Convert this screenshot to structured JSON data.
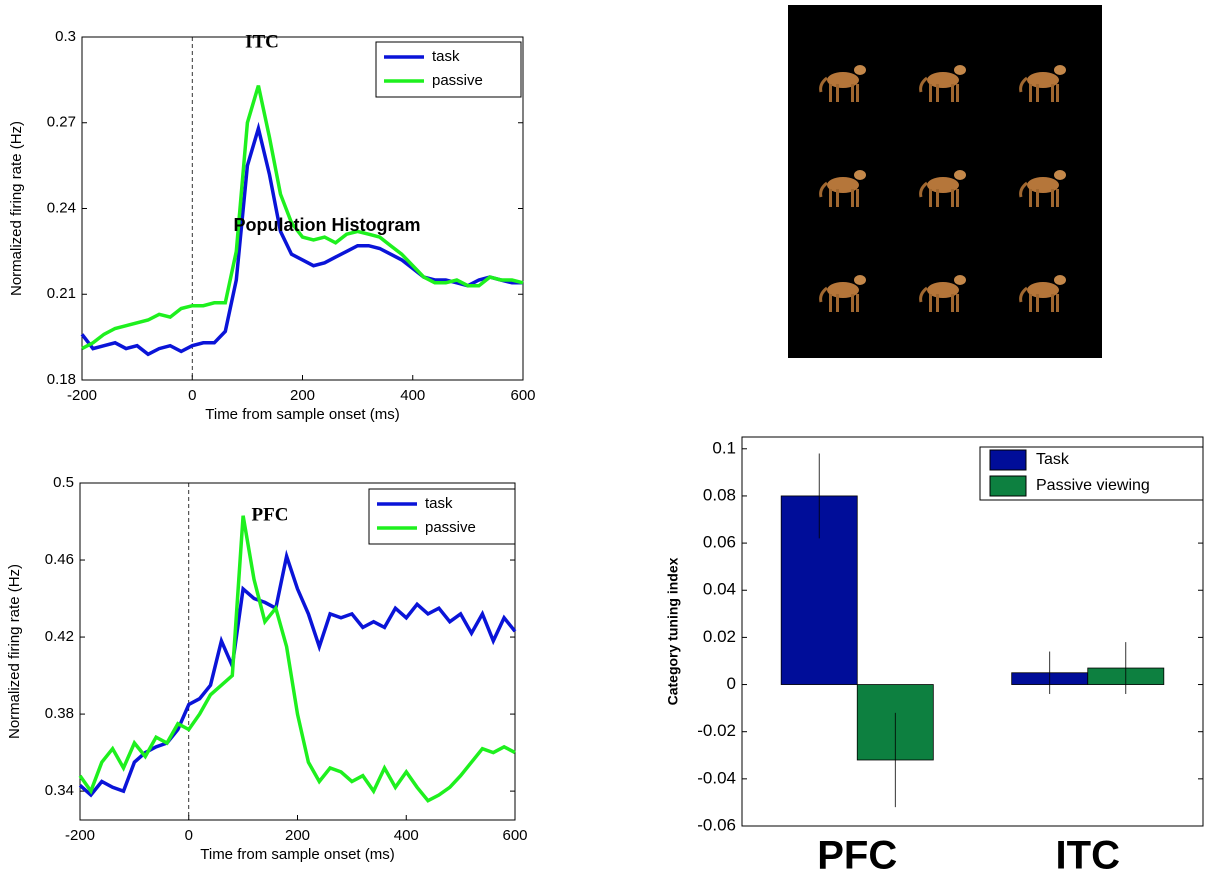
{
  "chart_data": [
    {
      "type": "line",
      "title": "ITC",
      "annotation": "Population Histogram",
      "xlabel": "Time from sample onset  (ms)",
      "ylabel": "Normalized firing rate  (Hz)",
      "xlim": [
        -200,
        600
      ],
      "xticks": [
        -200,
        0,
        200,
        400,
        600
      ],
      "ylim": [
        0.18,
        0.3
      ],
      "yticks": [
        0.18,
        0.21,
        0.24,
        0.27,
        0.3
      ],
      "vline": 0,
      "legend": "upper right",
      "x": [
        -200,
        -180,
        -160,
        -140,
        -120,
        -100,
        -80,
        -60,
        -40,
        -20,
        0,
        20,
        40,
        60,
        80,
        100,
        120,
        140,
        160,
        180,
        200,
        220,
        240,
        260,
        280,
        300,
        320,
        340,
        360,
        380,
        400,
        420,
        440,
        460,
        480,
        500,
        520,
        540,
        560,
        580,
        600
      ],
      "series": [
        {
          "name": "task",
          "color": "#0a14d8",
          "values": [
            0.196,
            0.191,
            0.192,
            0.193,
            0.191,
            0.192,
            0.189,
            0.191,
            0.192,
            0.19,
            0.192,
            0.193,
            0.193,
            0.197,
            0.215,
            0.255,
            0.268,
            0.252,
            0.232,
            0.224,
            0.222,
            0.22,
            0.221,
            0.223,
            0.225,
            0.227,
            0.227,
            0.226,
            0.224,
            0.222,
            0.219,
            0.216,
            0.215,
            0.215,
            0.214,
            0.213,
            0.215,
            0.216,
            0.215,
            0.214,
            0.214
          ]
        },
        {
          "name": "passive",
          "color": "#1ef01e",
          "values": [
            0.191,
            0.193,
            0.196,
            0.198,
            0.199,
            0.2,
            0.201,
            0.203,
            0.202,
            0.205,
            0.206,
            0.206,
            0.207,
            0.207,
            0.225,
            0.27,
            0.283,
            0.265,
            0.245,
            0.235,
            0.23,
            0.229,
            0.23,
            0.228,
            0.231,
            0.232,
            0.231,
            0.23,
            0.227,
            0.224,
            0.22,
            0.216,
            0.214,
            0.214,
            0.215,
            0.213,
            0.213,
            0.216,
            0.215,
            0.215,
            0.214
          ]
        }
      ]
    },
    {
      "type": "line",
      "title": "PFC",
      "xlabel": "Time from sample onset  (ms)",
      "ylabel": "Normalized firing rate  (Hz)",
      "xlim": [
        -200,
        600
      ],
      "xticks": [
        -200,
        0,
        200,
        400,
        600
      ],
      "ylim": [
        0.325,
        0.5
      ],
      "yticks": [
        0.34,
        0.38,
        0.42,
        0.46,
        0.5
      ],
      "vline": 0,
      "legend": "upper right",
      "x": [
        -200,
        -180,
        -160,
        -140,
        -120,
        -100,
        -80,
        -60,
        -40,
        -20,
        0,
        20,
        40,
        60,
        80,
        100,
        120,
        140,
        160,
        180,
        200,
        220,
        240,
        260,
        280,
        300,
        320,
        340,
        360,
        380,
        400,
        420,
        440,
        460,
        480,
        500,
        520,
        540,
        560,
        580,
        600
      ],
      "series": [
        {
          "name": "task",
          "color": "#0a14d8",
          "values": [
            0.343,
            0.338,
            0.345,
            0.342,
            0.34,
            0.355,
            0.36,
            0.363,
            0.365,
            0.372,
            0.385,
            0.388,
            0.395,
            0.418,
            0.405,
            0.445,
            0.44,
            0.438,
            0.435,
            0.462,
            0.445,
            0.432,
            0.415,
            0.432,
            0.43,
            0.432,
            0.425,
            0.428,
            0.425,
            0.435,
            0.43,
            0.437,
            0.432,
            0.435,
            0.428,
            0.432,
            0.422,
            0.432,
            0.418,
            0.43,
            0.423
          ]
        },
        {
          "name": "passive",
          "color": "#1ef01e",
          "values": [
            0.348,
            0.34,
            0.355,
            0.362,
            0.352,
            0.365,
            0.358,
            0.368,
            0.365,
            0.375,
            0.372,
            0.38,
            0.39,
            0.395,
            0.4,
            0.483,
            0.45,
            0.428,
            0.435,
            0.415,
            0.38,
            0.355,
            0.345,
            0.352,
            0.35,
            0.345,
            0.348,
            0.34,
            0.352,
            0.342,
            0.35,
            0.342,
            0.335,
            0.338,
            0.342,
            0.348,
            0.355,
            0.362,
            0.36,
            0.363,
            0.36
          ]
        }
      ]
    },
    {
      "type": "bar",
      "ylabel": "Category tuning index",
      "categories": [
        "PFC",
        "ITC"
      ],
      "ylim": [
        -0.06,
        0.105
      ],
      "yticks": [
        -0.06,
        -0.04,
        -0.02,
        0,
        0.02,
        0.04,
        0.06,
        0.08,
        0.1
      ],
      "legend": "upper right",
      "series": [
        {
          "name": "Task",
          "color": "#000d99",
          "values": [
            0.08,
            0.005
          ],
          "errors": [
            0.018,
            0.009
          ]
        },
        {
          "name": "Passive viewing",
          "color": "#0d8040",
          "values": [
            -0.032,
            0.007
          ],
          "errors": [
            0.02,
            0.011
          ]
        }
      ]
    }
  ]
}
